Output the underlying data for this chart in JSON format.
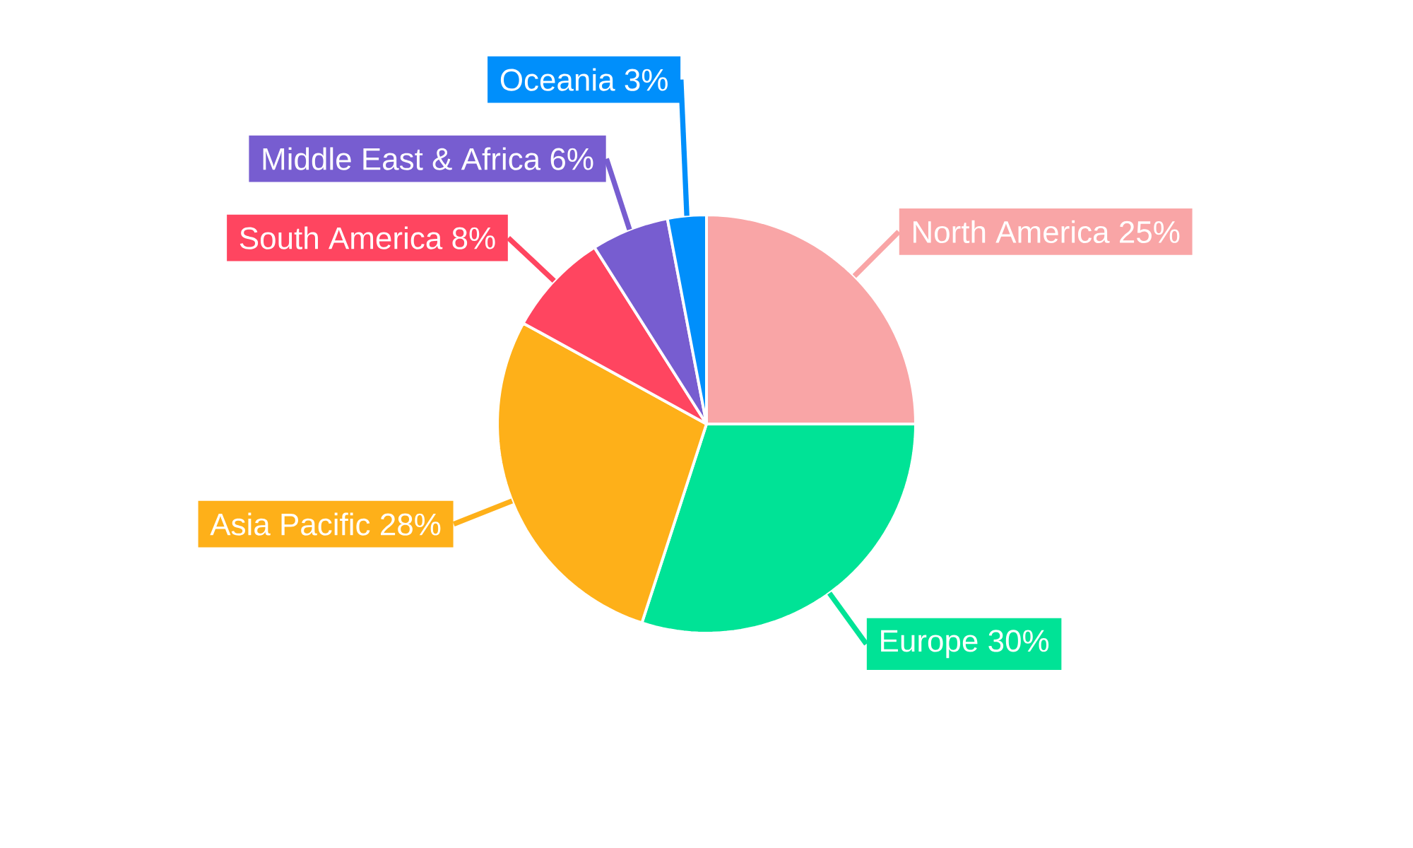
{
  "chart_data": {
    "type": "pie",
    "categories": [
      "North America",
      "Europe",
      "Asia Pacific",
      "South America",
      "Middle East & Africa",
      "Oceania"
    ],
    "values": [
      25,
      30,
      28,
      8,
      6,
      3
    ],
    "colors": [
      "#f9a5a6",
      "#00e396",
      "#feb019",
      "#ff4560",
      "#775dd0",
      "#008ffb"
    ],
    "value_labels": [
      "25%",
      "30%",
      "28%",
      "8%",
      "6%",
      "3%"
    ]
  }
}
